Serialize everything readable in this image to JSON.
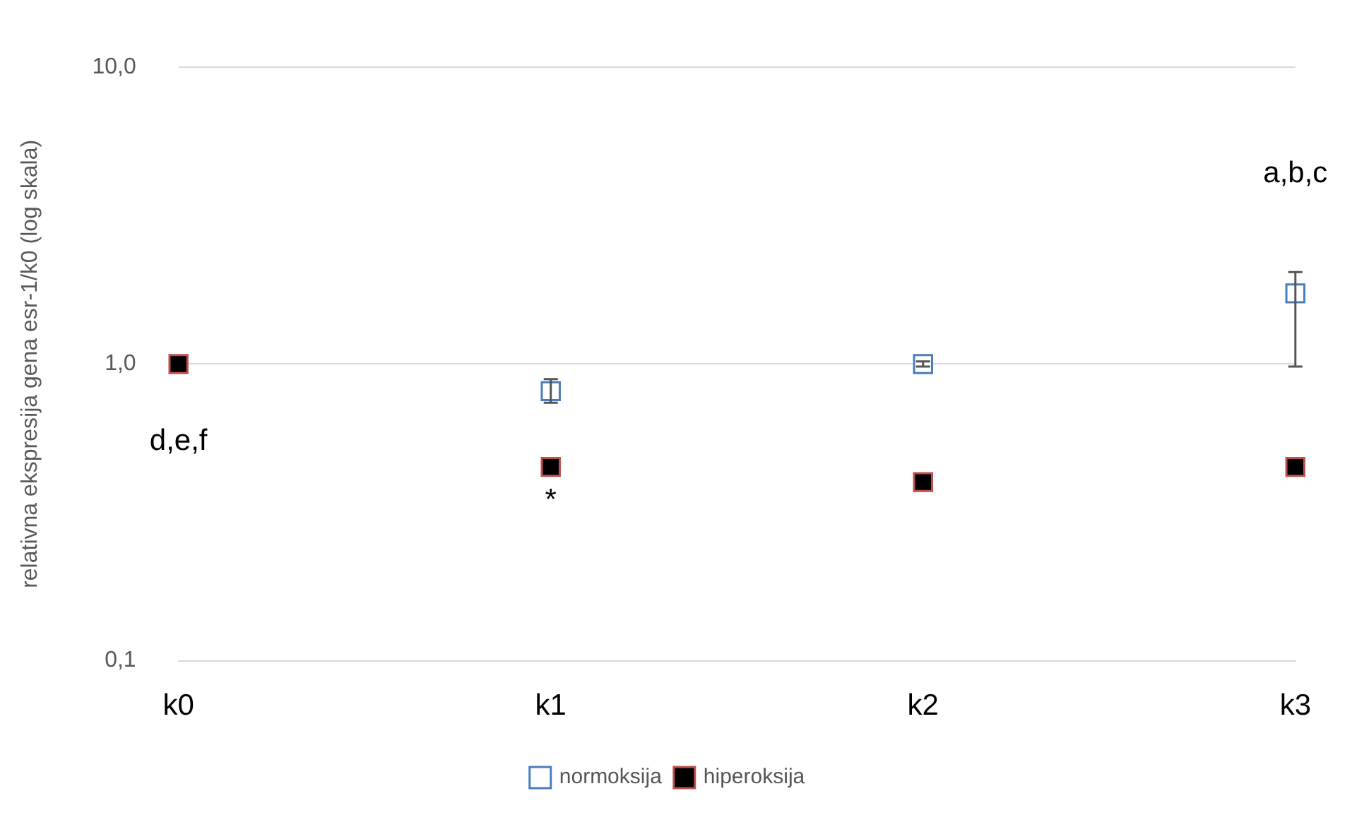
{
  "chart_data": {
    "type": "scatter",
    "ylabel": "relativna ekspresija gena esr-1/k0 (log skala)",
    "categories": [
      "k0",
      "k1",
      "k2",
      "k3"
    ],
    "series": [
      {
        "name": "normoksija",
        "color": "#4a7ebb",
        "values": [
          null,
          0.81,
          1.0,
          1.73
        ],
        "errors": [
          null,
          [
            0.74,
            0.89
          ],
          [
            0.98,
            1.02
          ],
          [
            0.98,
            2.04
          ]
        ]
      },
      {
        "name": "hiperoksija",
        "color": "#000000",
        "values": [
          1.0,
          0.45,
          0.4,
          0.45
        ]
      }
    ],
    "ylim": [
      0.1,
      10
    ],
    "yticks": [
      {
        "value": 0.1,
        "label": "0,1"
      },
      {
        "value": 1,
        "label": "1,0"
      },
      {
        "value": 10,
        "label": "10,0"
      }
    ],
    "log": "y",
    "grid": "y",
    "legend": "bottom",
    "marker": "square",
    "annotations": [
      "a,b,c",
      {
        "text": "d,e,f",
        "x": "k0",
        "y": 1.0
      },
      {
        "text": "*",
        "x": "k1",
        "y": 0.45
      }
    ]
  }
}
